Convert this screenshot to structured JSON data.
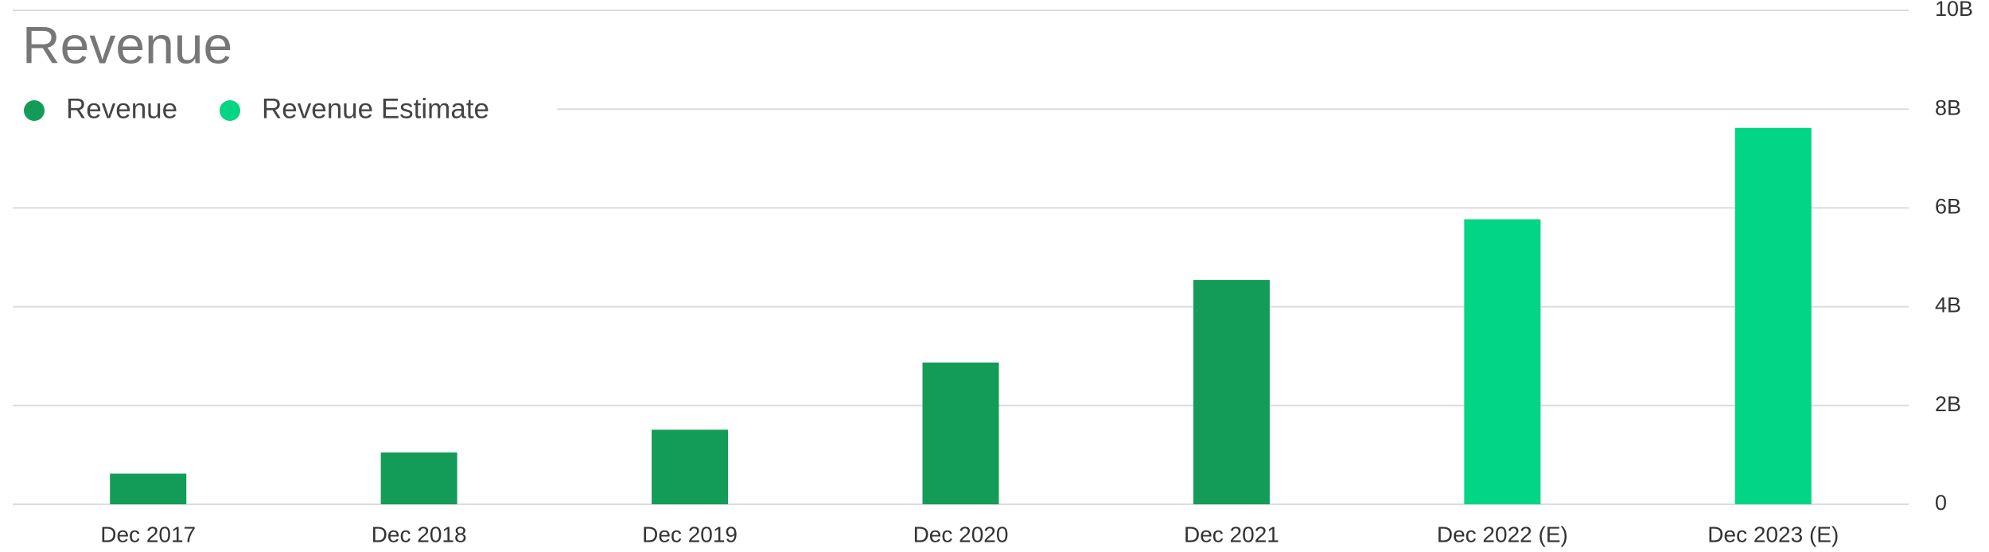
{
  "chart_data": {
    "type": "bar",
    "title": "Revenue",
    "categories": [
      "Dec 2017",
      "Dec 2018",
      "Dec 2019",
      "Dec 2020",
      "Dec 2021",
      "Dec 2022 (E)",
      "Dec 2023 (E)"
    ],
    "series": [
      {
        "name": "Revenue",
        "color": "#139c57",
        "values": [
          0.62,
          1.05,
          1.51,
          2.87,
          4.54,
          null,
          null
        ]
      },
      {
        "name": "Revenue Estimate",
        "color": "#02d584",
        "values": [
          null,
          null,
          null,
          null,
          null,
          5.77,
          7.62
        ]
      }
    ],
    "ylim": [
      0,
      10
    ],
    "yticks": [
      0,
      {
        "value": 2,
        "label": "2B"
      },
      {
        "value": 4,
        "label": "4B"
      },
      {
        "value": 6,
        "label": "6B"
      },
      {
        "value": 8,
        "label": "8B"
      },
      {
        "value": 10,
        "label": "10B"
      }
    ],
    "grid": true,
    "legend": "top-left"
  }
}
